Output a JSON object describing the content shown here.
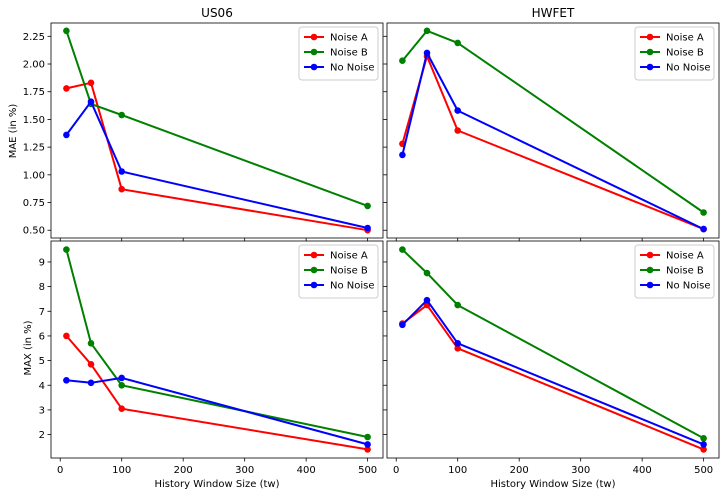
{
  "figure": {
    "x_axis_label": "History Window Size (tw)",
    "top_row_y_label": "MAE (in %)",
    "bottom_row_y_label": "MAX (in %)"
  },
  "chart_data": [
    {
      "type": "line",
      "title": "US06",
      "xlabel": "",
      "ylabel": "MAE (in %)",
      "x": [
        10,
        50,
        100,
        500
      ],
      "xlim": [
        -15,
        525
      ],
      "ylim": [
        0.43,
        2.37
      ],
      "x_ticks": [
        0,
        100,
        200,
        300,
        400,
        500
      ],
      "y_ticks": [
        0.5,
        0.75,
        1.0,
        1.25,
        1.5,
        1.75,
        2.0,
        2.25
      ],
      "y_tick_labels": [
        "0.50",
        "0.75",
        "1.00",
        "1.25",
        "1.50",
        "1.75",
        "2.00",
        "2.25"
      ],
      "show_x_tick_labels": false,
      "show_y_tick_labels": true,
      "grid": false,
      "legend": "top-right",
      "series": [
        {
          "name": "Noise A",
          "color": "#ff0000",
          "values": [
            1.78,
            1.83,
            0.87,
            0.5
          ]
        },
        {
          "name": "Noise B",
          "color": "#008000",
          "values": [
            2.3,
            1.64,
            1.54,
            0.72
          ]
        },
        {
          "name": "No Noise",
          "color": "#0000ff",
          "values": [
            1.36,
            1.66,
            1.03,
            0.52
          ]
        }
      ]
    },
    {
      "type": "line",
      "title": "HWFET",
      "xlabel": "",
      "ylabel": "",
      "x": [
        10,
        50,
        100,
        500
      ],
      "xlim": [
        -15,
        525
      ],
      "ylim": [
        0.43,
        2.37
      ],
      "x_ticks": [
        0,
        100,
        200,
        300,
        400,
        500
      ],
      "y_ticks": [
        0.5,
        0.75,
        1.0,
        1.25,
        1.5,
        1.75,
        2.0,
        2.25
      ],
      "y_tick_labels": [
        "0.50",
        "0.75",
        "1.00",
        "1.25",
        "1.50",
        "1.75",
        "2.00",
        "2.25"
      ],
      "show_x_tick_labels": false,
      "show_y_tick_labels": false,
      "grid": false,
      "legend": "top-right",
      "series": [
        {
          "name": "Noise A",
          "color": "#ff0000",
          "values": [
            1.28,
            2.07,
            1.4,
            0.51
          ]
        },
        {
          "name": "Noise B",
          "color": "#008000",
          "values": [
            2.03,
            2.3,
            2.19,
            0.66
          ]
        },
        {
          "name": "No Noise",
          "color": "#0000ff",
          "values": [
            1.18,
            2.1,
            1.58,
            0.51
          ]
        }
      ]
    },
    {
      "type": "line",
      "title": "",
      "xlabel": "History Window Size (tw)",
      "ylabel": "MAX (in %)",
      "x": [
        10,
        50,
        100,
        500
      ],
      "xlim": [
        -15,
        525
      ],
      "ylim": [
        1.05,
        9.85
      ],
      "x_ticks": [
        0,
        100,
        200,
        300,
        400,
        500
      ],
      "x_tick_labels": [
        "0",
        "100",
        "200",
        "300",
        "400",
        "500"
      ],
      "y_ticks": [
        2,
        3,
        4,
        5,
        6,
        7,
        8,
        9
      ],
      "y_tick_labels": [
        "2",
        "3",
        "4",
        "5",
        "6",
        "7",
        "8",
        "9"
      ],
      "show_x_tick_labels": true,
      "show_y_tick_labels": true,
      "grid": false,
      "legend": "top-right",
      "series": [
        {
          "name": "Noise A",
          "color": "#ff0000",
          "values": [
            6.0,
            4.85,
            3.05,
            1.4
          ]
        },
        {
          "name": "Noise B",
          "color": "#008000",
          "values": [
            9.5,
            5.7,
            4.0,
            1.9
          ]
        },
        {
          "name": "No Noise",
          "color": "#0000ff",
          "values": [
            4.2,
            4.1,
            4.3,
            1.6
          ]
        }
      ]
    },
    {
      "type": "line",
      "title": "",
      "xlabel": "History Window Size (tw)",
      "ylabel": "",
      "x": [
        10,
        50,
        100,
        500
      ],
      "xlim": [
        -15,
        525
      ],
      "ylim": [
        1.05,
        9.85
      ],
      "x_ticks": [
        0,
        100,
        200,
        300,
        400,
        500
      ],
      "x_tick_labels": [
        "0",
        "100",
        "200",
        "300",
        "400",
        "500"
      ],
      "y_ticks": [
        2,
        3,
        4,
        5,
        6,
        7,
        8,
        9
      ],
      "y_tick_labels": [
        "2",
        "3",
        "4",
        "5",
        "6",
        "7",
        "8",
        "9"
      ],
      "show_x_tick_labels": true,
      "show_y_tick_labels": false,
      "grid": false,
      "legend": "top-right",
      "series": [
        {
          "name": "Noise A",
          "color": "#ff0000",
          "values": [
            6.5,
            7.25,
            5.5,
            1.4
          ]
        },
        {
          "name": "Noise B",
          "color": "#008000",
          "values": [
            9.5,
            8.55,
            7.25,
            1.85
          ]
        },
        {
          "name": "No Noise",
          "color": "#0000ff",
          "values": [
            6.45,
            7.45,
            5.7,
            1.6
          ]
        }
      ]
    }
  ]
}
